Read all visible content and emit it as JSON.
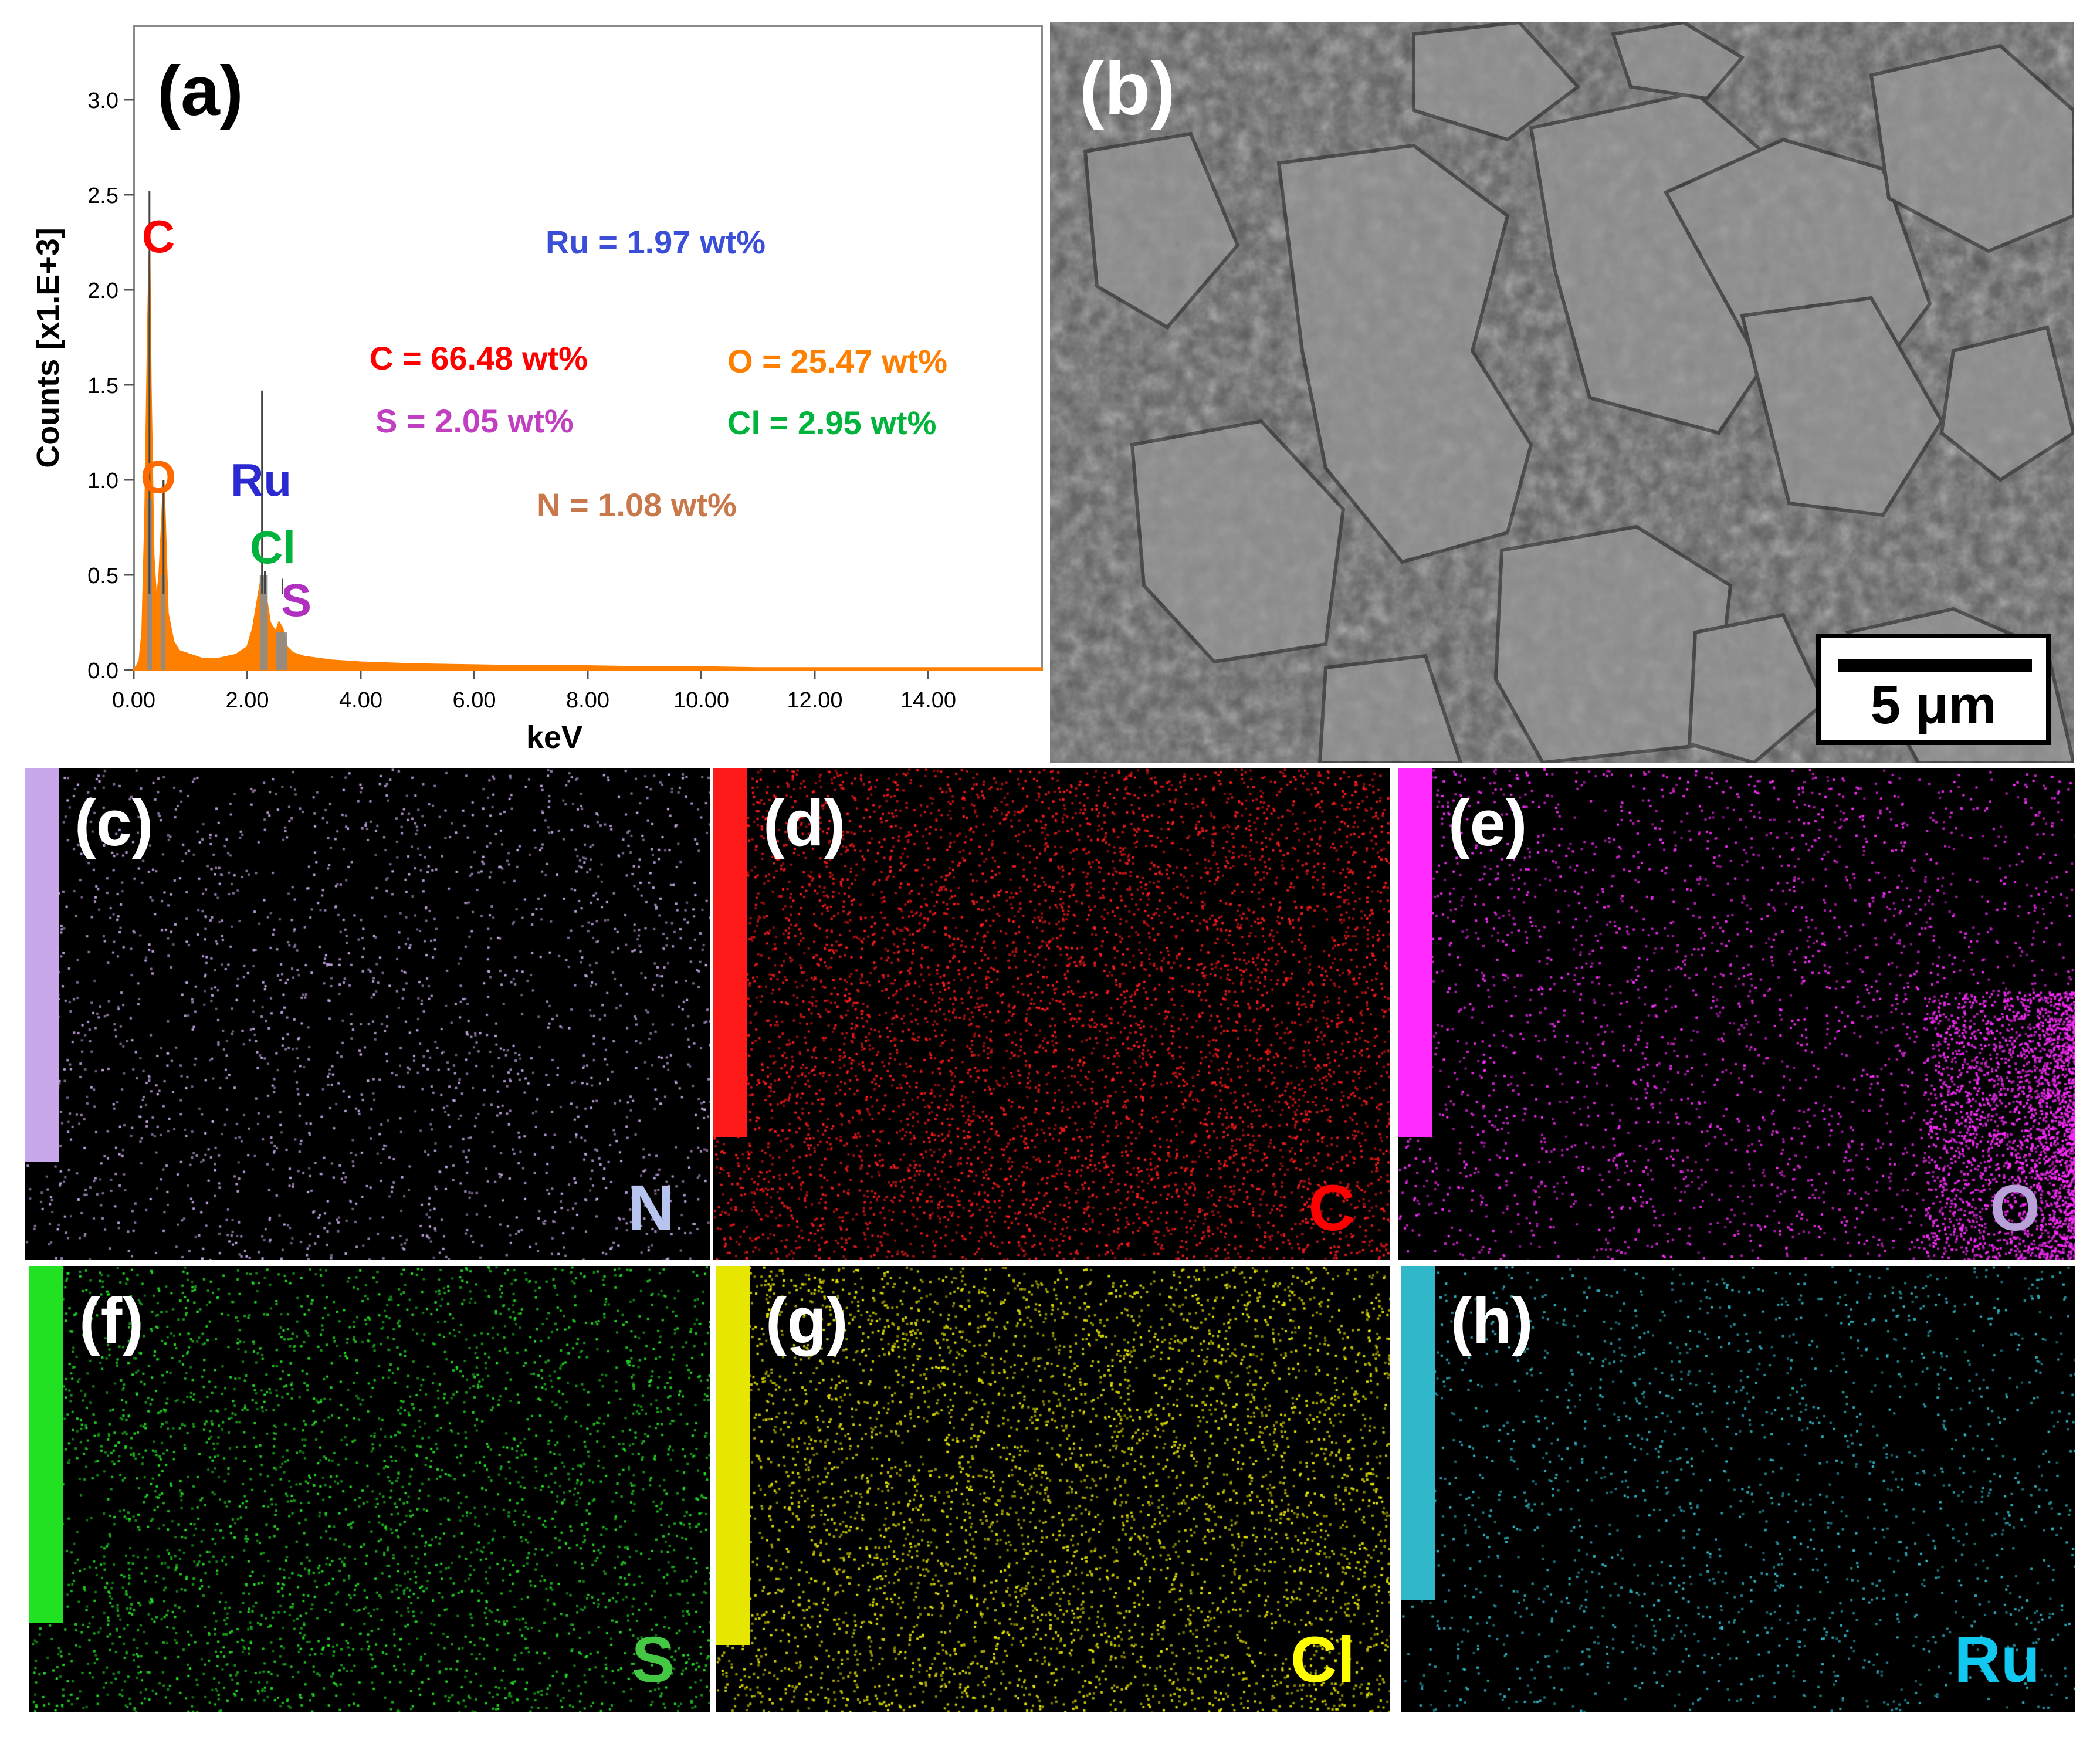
{
  "figure": {
    "spectrum": {
      "panel_label": "(a)",
      "y_axis_label": "Counts [x1.E+3]",
      "x_axis_label": "keV",
      "peak_labels": [
        {
          "text": "C",
          "color": "#ff0000"
        },
        {
          "text": "O",
          "color": "#ff6a00"
        },
        {
          "text": "Ru",
          "color": "#2a2ad0"
        },
        {
          "text": "Cl",
          "color": "#00b33c"
        },
        {
          "text": "S",
          "color": "#b030c0"
        }
      ],
      "composition": [
        {
          "text": "Ru = 1.97 wt%",
          "color": "#3a4ed8"
        },
        {
          "text": "C = 66.48 wt%",
          "color": "#ff0000"
        },
        {
          "text": "O = 25.47 wt%",
          "color": "#ff8000"
        },
        {
          "text": "S = 2.05 wt%",
          "color": "#c040c0"
        },
        {
          "text": "Cl = 2.95 wt%",
          "color": "#00b33c"
        },
        {
          "text": "N = 1.08 wt%",
          "color": "#c8784a"
        }
      ]
    },
    "sem": {
      "panel_label": "(b)",
      "scale_bar_label": "5 μm"
    },
    "maps": [
      {
        "panel_label": "(c)",
        "element": "N",
        "color": "#c8a8e8",
        "label_color": "#b8c4f0",
        "bar_level": 0.8,
        "density": 0.35
      },
      {
        "panel_label": "(d)",
        "element": "C",
        "color": "#ff1a1a",
        "label_color": "#ff0000",
        "bar_level": 0.75,
        "density": 1.0
      },
      {
        "panel_label": "(e)",
        "element": "O",
        "color": "#ff2bff",
        "label_color": "#b8a0d8",
        "bar_level": 0.75,
        "density": 0.45
      },
      {
        "panel_label": "(f)",
        "element": "S",
        "color": "#22e022",
        "label_color": "#44c844",
        "bar_level": 0.8,
        "density": 0.55
      },
      {
        "panel_label": "(g)",
        "element": "Cl",
        "color": "#e6e600",
        "label_color": "#ffff00",
        "bar_level": 0.85,
        "density": 0.8
      },
      {
        "panel_label": "(h)",
        "element": "Ru",
        "color": "#30b8c8",
        "label_color": "#10c8f0",
        "bar_level": 0.75,
        "density": 0.3
      }
    ]
  },
  "chart_data": {
    "type": "line",
    "title": "",
    "xlabel": "keV",
    "ylabel": "Counts [x1.E+3]",
    "xlim": [
      0,
      16
    ],
    "ylim": [
      0,
      3.3
    ],
    "x_ticks": [
      "0.00",
      "2.00",
      "4.00",
      "6.00",
      "8.00",
      "10.00",
      "12.00",
      "14.00"
    ],
    "y_ticks": [
      "0.0",
      "0.5",
      "1.0",
      "1.5",
      "2.0",
      "2.5",
      "3.0"
    ],
    "grid": false,
    "series": [
      {
        "color": "#ff8000",
        "x": [
          0.0,
          0.05,
          0.1,
          0.15,
          0.2,
          0.25,
          0.277,
          0.3,
          0.35,
          0.4,
          0.45,
          0.5,
          0.525,
          0.55,
          0.6,
          0.7,
          0.8,
          1.0,
          1.2,
          1.5,
          1.8,
          2.0,
          2.1,
          2.2,
          2.26,
          2.3,
          2.4,
          2.5,
          2.56,
          2.62,
          2.7,
          2.8,
          3.0,
          3.5,
          4.0,
          5.0,
          6.0,
          7.0,
          8.0,
          9.0,
          10.0,
          11.0,
          12.0,
          13.0,
          14.0,
          15.0,
          16.0
        ],
        "y": [
          0.0,
          0.02,
          0.05,
          0.2,
          0.8,
          1.8,
          2.2,
          1.5,
          0.6,
          0.35,
          0.5,
          0.8,
          1.0,
          0.8,
          0.3,
          0.15,
          0.1,
          0.08,
          0.06,
          0.06,
          0.08,
          0.12,
          0.22,
          0.4,
          0.5,
          0.45,
          0.25,
          0.2,
          0.25,
          0.22,
          0.12,
          0.09,
          0.07,
          0.05,
          0.04,
          0.03,
          0.025,
          0.02,
          0.02,
          0.015,
          0.015,
          0.01,
          0.01,
          0.01,
          0.01,
          0.01,
          0.01
        ]
      }
    ],
    "markers": [
      {
        "label": "C",
        "x": 0.277,
        "y": 2.52
      },
      {
        "label": "O",
        "x": 0.525,
        "y": 1.0
      },
      {
        "label": "Ru",
        "x": 2.26,
        "y": 1.47
      },
      {
        "label": "Cl",
        "x": 2.62,
        "y": 0.48
      },
      {
        "label": "S",
        "x": 2.31,
        "y": 0.52
      }
    ]
  }
}
